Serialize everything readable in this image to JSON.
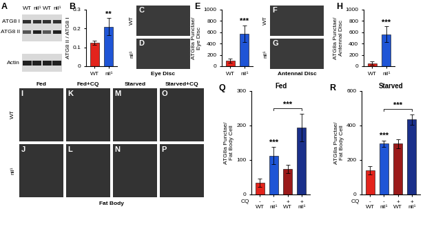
{
  "chart_data": [
    {
      "panel": "B",
      "type": "bar",
      "ylabel": "ATG8 II / ATG8 I",
      "categories": [
        "WT",
        "nil¹"
      ],
      "values": [
        0.125,
        0.21
      ],
      "errors": [
        0.01,
        0.045
      ],
      "colors": [
        "#e3241c",
        "#1f55d6"
      ],
      "ylim": [
        0,
        0.3
      ],
      "yticks": [
        0,
        0.1,
        0.2,
        0.3
      ],
      "significance": [
        {
          "bars": [
            1
          ],
          "label": "**"
        }
      ]
    },
    {
      "panel": "E",
      "type": "bar",
      "ylabel": "ATG8a Punctae/\nEye Disc",
      "categories": [
        "WT",
        "nil¹"
      ],
      "values": [
        95,
        575
      ],
      "errors": [
        40,
        150
      ],
      "colors": [
        "#e3241c",
        "#1f55d6"
      ],
      "ylim": [
        0,
        1000
      ],
      "yticks": [
        0,
        200,
        400,
        600,
        800,
        1000
      ],
      "significance": [
        {
          "bars": [
            1
          ],
          "label": "***"
        }
      ]
    },
    {
      "panel": "H",
      "type": "bar",
      "ylabel": "ATG8a Punctae/\nAntennal Disc",
      "categories": [
        "WT",
        "nil¹"
      ],
      "values": [
        50,
        565
      ],
      "errors": [
        30,
        140
      ],
      "colors": [
        "#e3241c",
        "#1f55d6"
      ],
      "ylim": [
        0,
        1000
      ],
      "yticks": [
        0,
        200,
        400,
        600,
        800,
        1000
      ],
      "significance": [
        {
          "bars": [
            1
          ],
          "label": "***"
        }
      ]
    },
    {
      "panel": "Q",
      "type": "bar",
      "title": "Fed",
      "ylabel": "ATG8a Punctae/\nFat Body Cell",
      "categories": [
        "WT",
        "nil¹",
        "WT",
        "nil¹"
      ],
      "cq_label": "CQ",
      "cq": [
        "-",
        "-",
        "+",
        "+"
      ],
      "values": [
        35,
        113,
        75,
        195
      ],
      "errors": [
        12,
        25,
        12,
        40
      ],
      "colors": [
        "#e3241c",
        "#1f55d6",
        "#9b1a1a",
        "#1a2f8a"
      ],
      "ylim": [
        0,
        300
      ],
      "yticks": [
        0,
        100,
        200,
        300
      ],
      "significance": [
        {
          "bars": [
            1
          ],
          "label": "***"
        },
        {
          "bars": [
            1,
            3
          ],
          "label": "***"
        }
      ]
    },
    {
      "panel": "R",
      "type": "bar",
      "title": "Starved",
      "ylabel": "ATG8a Punctae/\nFat Body Cell",
      "categories": [
        "WT",
        "nil¹",
        "WT",
        "nil¹"
      ],
      "cq_label": "CQ",
      "cq": [
        "-",
        "-",
        "+",
        "+"
      ],
      "values": [
        140,
        295,
        295,
        435
      ],
      "errors": [
        25,
        18,
        25,
        30
      ],
      "colors": [
        "#e3241c",
        "#1f55d6",
        "#9b1a1a",
        "#1a2f8a"
      ],
      "ylim": [
        0,
        600
      ],
      "yticks": [
        0,
        200,
        400,
        600
      ],
      "significance": [
        {
          "bars": [
            1
          ],
          "label": "***"
        },
        {
          "bars": [
            1,
            3
          ],
          "label": "***"
        }
      ]
    }
  ],
  "blot": {
    "panel": "A",
    "lanes": [
      "WT",
      "nil¹",
      "WT",
      "nil¹"
    ],
    "bands": [
      "ATG8 I",
      "ATG8 II",
      "Actin"
    ]
  },
  "eye_disc": {
    "caption": "Eye Disc",
    "panels": [
      {
        "label": "C",
        "row": "WT"
      },
      {
        "label": "D",
        "row": "nil¹"
      }
    ]
  },
  "antennal_disc": {
    "caption": "Antennal Disc",
    "panels": [
      {
        "label": "F",
        "row": "WT"
      },
      {
        "label": "G",
        "row": "nil¹"
      }
    ]
  },
  "fat_body": {
    "caption": "Fat Body",
    "columns": [
      "Fed",
      "Fed+CQ",
      "Starved",
      "Starved+CQ"
    ],
    "rows": [
      "WT",
      "nil¹"
    ],
    "panel_labels": [
      [
        "I",
        "K",
        "M",
        "O"
      ],
      [
        "J",
        "L",
        "N",
        "P"
      ]
    ]
  }
}
